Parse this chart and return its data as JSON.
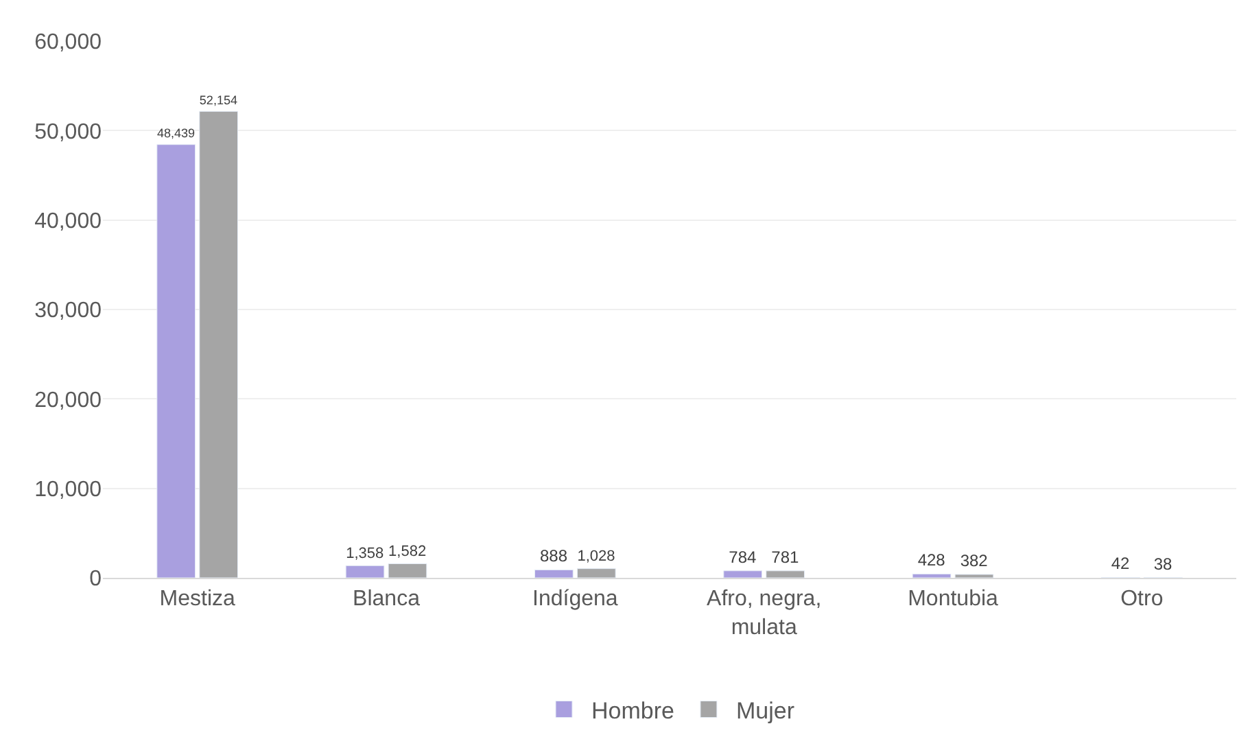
{
  "chart_data": {
    "type": "bar",
    "categories": [
      "Mestiza",
      "Blanca",
      "Indígena",
      "Afro, negra, mulata",
      "Montubia",
      "Otro"
    ],
    "series": [
      {
        "name": "Hombre",
        "color": "#a99fdf",
        "values": [
          48439,
          1358,
          888,
          784,
          428,
          42
        ],
        "value_labels": [
          "48,439",
          "1,358",
          "888",
          "784",
          "428",
          "42"
        ]
      },
      {
        "name": "Mujer",
        "color": "#a5a5a5",
        "values": [
          52154,
          1582,
          1028,
          781,
          382,
          38
        ],
        "value_labels": [
          "52,154",
          "1,582",
          "1,028",
          "781",
          "382",
          "38"
        ]
      }
    ],
    "ylim": [
      0,
      60000
    ],
    "yticks": [
      {
        "value": 0,
        "label": "0"
      },
      {
        "value": 10000,
        "label": "10,000"
      },
      {
        "value": 20000,
        "label": "20,000"
      },
      {
        "value": 30000,
        "label": "30,000"
      },
      {
        "value": 40000,
        "label": "40,000"
      },
      {
        "value": 50000,
        "label": "50,000"
      },
      {
        "value": 60000,
        "label": "60,000"
      }
    ],
    "grid": "y",
    "legend": "bottom"
  }
}
